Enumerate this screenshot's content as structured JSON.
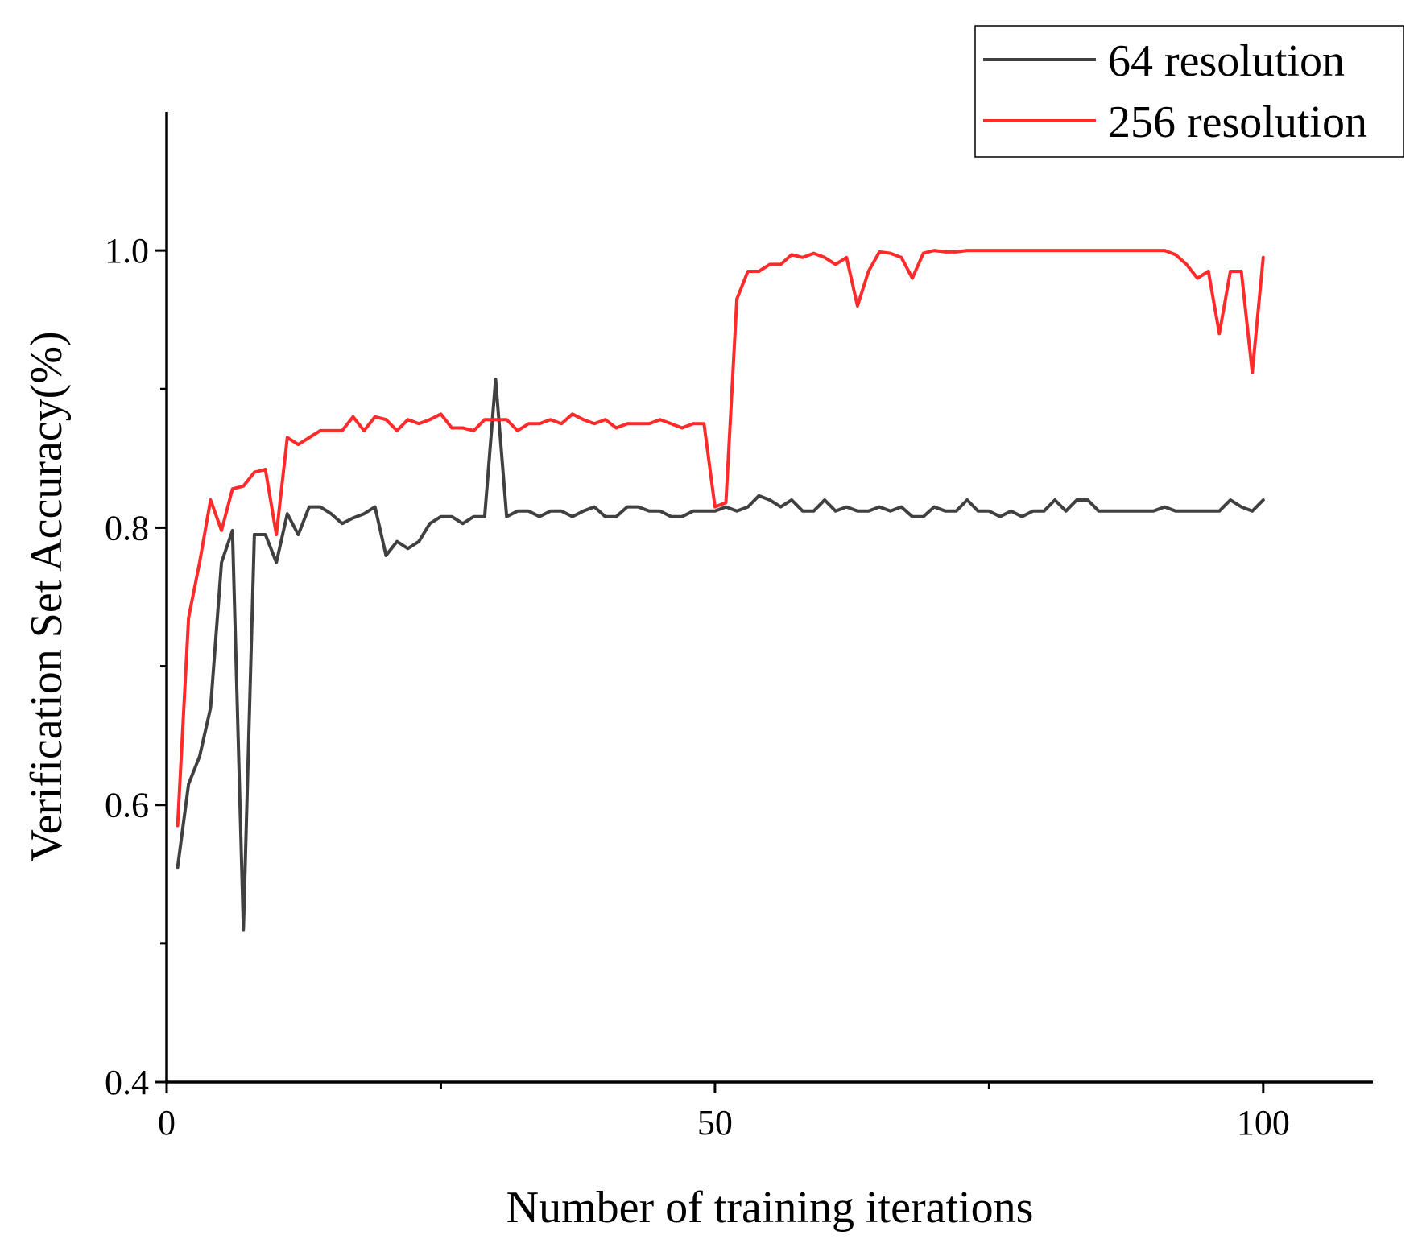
{
  "chart_data": {
    "type": "line",
    "title": "",
    "xlabel": "Number of training iterations",
    "ylabel": "Verification Set Accuracy(%)",
    "xlim": [
      0,
      110
    ],
    "ylim": [
      0.4,
      1.1
    ],
    "xticks": [
      0,
      50,
      100
    ],
    "xminor": [
      25,
      75
    ],
    "yticks": [
      0.4,
      0.6,
      0.8,
      1.0
    ],
    "yminor": [
      0.5,
      0.7,
      0.9
    ],
    "xtick_labels": [
      "0",
      "50",
      "100"
    ],
    "ytick_labels": [
      "0.4",
      "0.6",
      "0.8",
      "1.0"
    ],
    "grid": false,
    "legend_position": "top-right",
    "x": [
      1,
      2,
      3,
      4,
      5,
      6,
      7,
      8,
      9,
      10,
      11,
      12,
      13,
      14,
      15,
      16,
      17,
      18,
      19,
      20,
      21,
      22,
      23,
      24,
      25,
      26,
      27,
      28,
      29,
      30,
      31,
      32,
      33,
      34,
      35,
      36,
      37,
      38,
      39,
      40,
      41,
      42,
      43,
      44,
      45,
      46,
      47,
      48,
      49,
      50,
      51,
      52,
      53,
      54,
      55,
      56,
      57,
      58,
      59,
      60,
      61,
      62,
      63,
      64,
      65,
      66,
      67,
      68,
      69,
      70,
      71,
      72,
      73,
      74,
      75,
      76,
      77,
      78,
      79,
      80,
      81,
      82,
      83,
      84,
      85,
      86,
      87,
      88,
      89,
      90,
      91,
      92,
      93,
      94,
      95,
      96,
      97,
      98,
      99,
      100
    ],
    "series": [
      {
        "name": "64 resolution",
        "color": "#404040",
        "values": [
          0.555,
          0.615,
          0.635,
          0.67,
          0.775,
          0.798,
          0.51,
          0.795,
          0.795,
          0.775,
          0.81,
          0.795,
          0.815,
          0.815,
          0.81,
          0.803,
          0.807,
          0.81,
          0.815,
          0.78,
          0.79,
          0.785,
          0.79,
          0.803,
          0.808,
          0.808,
          0.803,
          0.808,
          0.808,
          0.907,
          0.808,
          0.812,
          0.812,
          0.808,
          0.812,
          0.812,
          0.808,
          0.812,
          0.815,
          0.808,
          0.808,
          0.815,
          0.815,
          0.812,
          0.812,
          0.808,
          0.808,
          0.812,
          0.812,
          0.812,
          0.815,
          0.812,
          0.815,
          0.823,
          0.82,
          0.815,
          0.82,
          0.812,
          0.812,
          0.82,
          0.812,
          0.815,
          0.812,
          0.812,
          0.815,
          0.812,
          0.815,
          0.808,
          0.808,
          0.815,
          0.812,
          0.812,
          0.82,
          0.812,
          0.812,
          0.808,
          0.812,
          0.808,
          0.812,
          0.812,
          0.82,
          0.812,
          0.82,
          0.82,
          0.812,
          0.812,
          0.812,
          0.812,
          0.812,
          0.812,
          0.815,
          0.812,
          0.812,
          0.812,
          0.812,
          0.812,
          0.82,
          0.815,
          0.812,
          0.82
        ]
      },
      {
        "name": "256 resolution",
        "color": "#ff2b2b",
        "values": [
          0.585,
          0.735,
          0.775,
          0.82,
          0.798,
          0.828,
          0.83,
          0.84,
          0.842,
          0.795,
          0.865,
          0.86,
          0.865,
          0.87,
          0.87,
          0.87,
          0.88,
          0.87,
          0.88,
          0.878,
          0.87,
          0.878,
          0.875,
          0.878,
          0.882,
          0.872,
          0.872,
          0.87,
          0.878,
          0.878,
          0.878,
          0.87,
          0.875,
          0.875,
          0.878,
          0.875,
          0.882,
          0.878,
          0.875,
          0.878,
          0.872,
          0.875,
          0.875,
          0.875,
          0.878,
          0.875,
          0.872,
          0.875,
          0.875,
          0.815,
          0.818,
          0.965,
          0.985,
          0.985,
          0.99,
          0.99,
          0.997,
          0.995,
          0.998,
          0.995,
          0.99,
          0.995,
          0.96,
          0.985,
          0.999,
          0.998,
          0.995,
          0.98,
          0.998,
          1.0,
          0.999,
          0.999,
          1.0,
          1.0,
          1.0,
          1.0,
          1.0,
          1.0,
          1.0,
          1.0,
          1.0,
          1.0,
          1.0,
          1.0,
          1.0,
          1.0,
          1.0,
          1.0,
          1.0,
          1.0,
          1.0,
          0.997,
          0.99,
          0.98,
          0.985,
          0.94,
          0.985,
          0.985,
          0.912,
          0.995
        ]
      }
    ]
  }
}
